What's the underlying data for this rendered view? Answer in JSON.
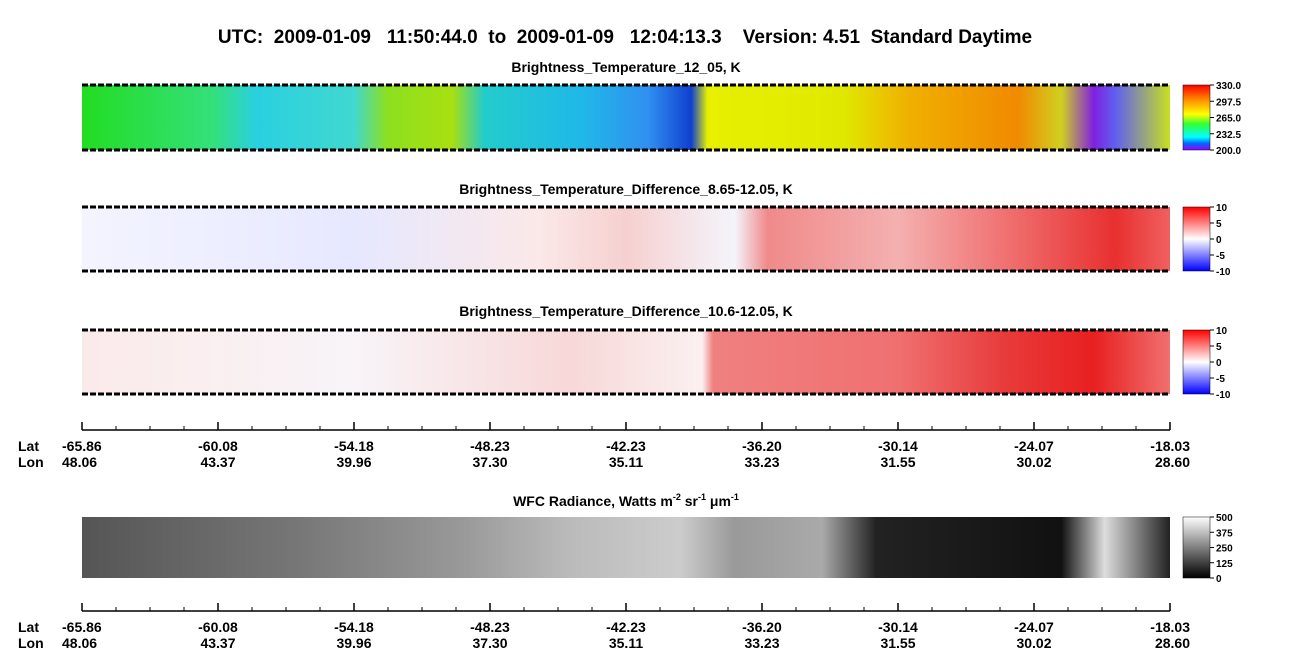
{
  "title": "UTC:  2009-01-09   11:50:44.0  to  2009-01-09   12:04:13.3    Version: 4.51  Standard Daytime",
  "panels": [
    {
      "title": "Brightness_Temperature_12_05, K",
      "colorbar": {
        "lim": [
          200,
          330
        ],
        "ticks": [
          {
            "value": 330,
            "label": "330.0"
          },
          297.5,
          {
            "value": 265,
            "label": "265.0"
          },
          232.5,
          {
            "value": 200,
            "label": "200.0"
          }
        ]
      }
    },
    {
      "title": "Brightness_Temperature_Difference_8.65-12.05, K",
      "colorbar": {
        "lim": [
          -10,
          10
        ],
        "ticks": [
          10,
          5,
          0,
          -5,
          -10
        ]
      }
    },
    {
      "title": "Brightness_Temperature_Difference_10.6-12.05, K",
      "colorbar": {
        "lim": [
          -10,
          10
        ],
        "ticks": [
          10,
          5,
          0,
          -5,
          -10
        ]
      }
    },
    {
      "title_parts": [
        "WFC Radiance, Watts m",
        "-2",
        " sr",
        "-1",
        " μm",
        "-1"
      ],
      "colorbar": {
        "lim": [
          0,
          500
        ],
        "ticks": [
          500,
          375,
          250,
          125,
          0
        ]
      }
    }
  ],
  "axes": [
    {
      "lat_label": "Lat",
      "lon_label": "Lon",
      "lat": [
        -65.86,
        -60.08,
        -54.18,
        -48.23,
        -42.23,
        {
          "value": -36.2,
          "label": "-36.20"
        },
        -30.14,
        -24.07,
        -18.03
      ],
      "lon": [
        48.06,
        43.37,
        39.96,
        {
          "value": 37.3,
          "label": "37.30"
        },
        35.11,
        33.23,
        31.55,
        30.02,
        {
          "value": 28.6,
          "label": "28.60"
        }
      ]
    },
    {
      "lat_label": "Lat",
      "lon_label": "Lon",
      "lat": [
        -65.86,
        -60.08,
        -54.18,
        -48.23,
        -42.23,
        {
          "value": -36.2,
          "label": "-36.20"
        },
        -30.14,
        -24.07,
        -18.03
      ],
      "lon": [
        48.06,
        43.37,
        39.96,
        {
          "value": 37.3,
          "label": "37.30"
        },
        35.11,
        33.23,
        31.55,
        30.02,
        {
          "value": 28.6,
          "label": "28.60"
        }
      ]
    }
  ]
}
